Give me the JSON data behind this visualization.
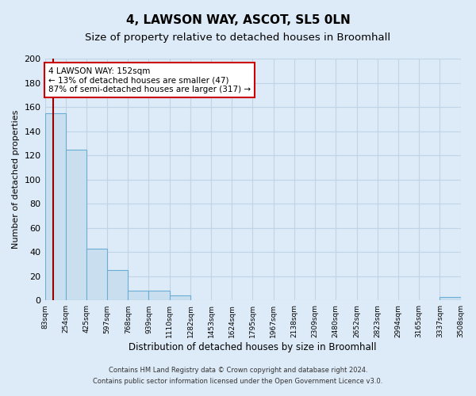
{
  "title": "4, LAWSON WAY, ASCOT, SL5 0LN",
  "subtitle": "Size of property relative to detached houses in Broomhall",
  "xlabel": "Distribution of detached houses by size in Broomhall",
  "ylabel": "Number of detached properties",
  "bin_edges": [
    83,
    254,
    425,
    597,
    768,
    939,
    1110,
    1282,
    1453,
    1624,
    1795,
    1967,
    2138,
    2309,
    2480,
    2652,
    2823,
    2994,
    3165,
    3337,
    3508
  ],
  "bin_labels": [
    "83sqm",
    "254sqm",
    "425sqm",
    "597sqm",
    "768sqm",
    "939sqm",
    "1110sqm",
    "1282sqm",
    "1453sqm",
    "1624sqm",
    "1795sqm",
    "1967sqm",
    "2138sqm",
    "2309sqm",
    "2480sqm",
    "2652sqm",
    "2823sqm",
    "2994sqm",
    "3165sqm",
    "3337sqm",
    "3508sqm"
  ],
  "bar_heights": [
    155,
    125,
    43,
    25,
    8,
    8,
    4,
    0,
    0,
    0,
    0,
    0,
    0,
    0,
    0,
    0,
    0,
    0,
    0,
    3
  ],
  "bar_color": "#c9dff0",
  "bar_edge_color": "#6aaed6",
  "ylim": [
    0,
    200
  ],
  "yticks": [
    0,
    20,
    40,
    60,
    80,
    100,
    120,
    140,
    160,
    180,
    200
  ],
  "property_size": 152,
  "vline_color": "#990000",
  "annotation_title": "4 LAWSON WAY: 152sqm",
  "annotation_line1": "← 13% of detached houses are smaller (47)",
  "annotation_line2": "87% of semi-detached houses are larger (317) →",
  "annotation_box_color": "#ffffff",
  "annotation_box_edge": "#cc0000",
  "footer1": "Contains HM Land Registry data © Crown copyright and database right 2024.",
  "footer2": "Contains public sector information licensed under the Open Government Licence v3.0.",
  "bg_color": "#ddeaf7",
  "plot_bg_color": "#ddeaf7",
  "grid_color": "#c0d4e8",
  "title_fontsize": 11,
  "subtitle_fontsize": 9.5
}
